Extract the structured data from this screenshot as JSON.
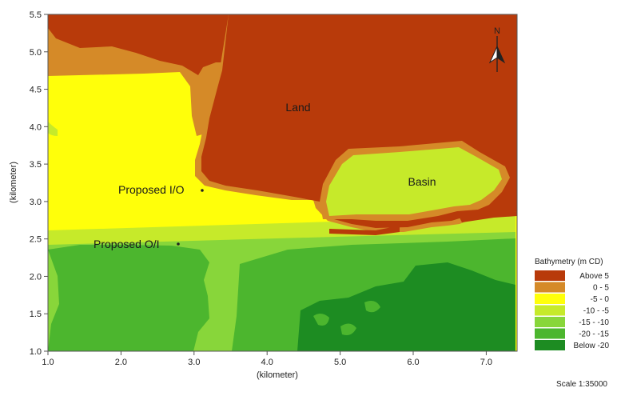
{
  "map": {
    "x_axis": {
      "title": "(kilometer)",
      "ticks": [
        "1.0",
        "2.0",
        "3.0",
        "4.0",
        "5.0",
        "6.0",
        "7.0"
      ]
    },
    "y_axis": {
      "title": "(kilometer)",
      "ticks": [
        "1.0",
        "1.5",
        "2.0",
        "2.5",
        "3.0",
        "3.5",
        "4.0",
        "4.5",
        "5.0",
        "5.5"
      ]
    },
    "labels": {
      "land": "Land",
      "basin": "Basin",
      "proposed_io": "Proposed I/O",
      "proposed_oi": "Proposed O/I"
    },
    "north": "N",
    "scale": "Scale 1:35000"
  },
  "legend": {
    "title": "Bathymetry (m CD)",
    "items": [
      {
        "label": "Above  5",
        "color": "#b83a0a"
      },
      {
        "label": "0 -  5",
        "color": "#d58a28"
      },
      {
        "label": "-5 -  0",
        "color": "#ffff0a"
      },
      {
        "label": "-10 -  -5",
        "color": "#c6ea2a"
      },
      {
        "label": "-15 - -10",
        "color": "#88d63a"
      },
      {
        "label": "-20 - -15",
        "color": "#4cb62e"
      },
      {
        "label": "Below -20",
        "color": "#1d8c22"
      }
    ]
  }
}
